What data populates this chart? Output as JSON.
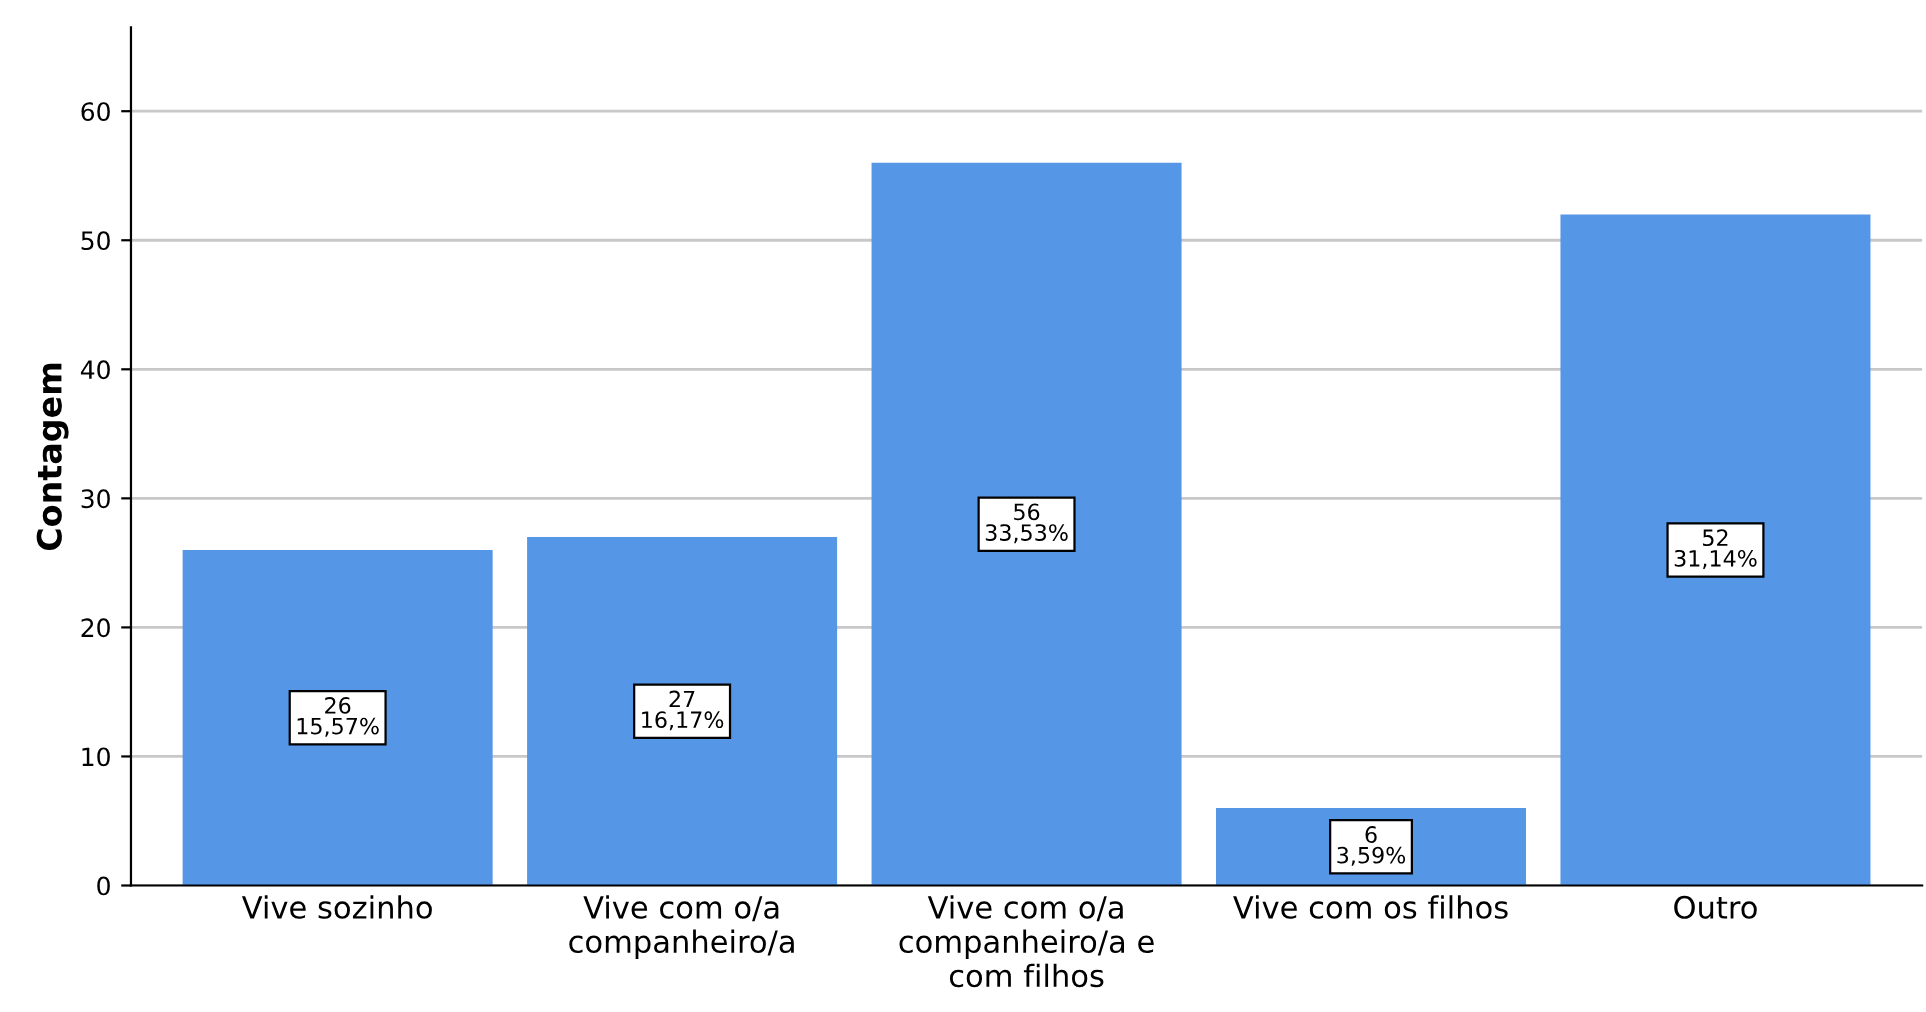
{
  "chart_data": {
    "type": "bar",
    "ylabel": "Contagem",
    "categories": [
      "Vive sozinho",
      "Vive com o/a\ncompanheiro/a",
      "Vive com o/a\ncompanheiro/a e\ncom filhos",
      "Vive com os filhos",
      "Outro"
    ],
    "values": [
      26,
      27,
      56,
      6,
      52
    ],
    "value_labels": [
      "26\n15,57%",
      "27\n16,17%",
      "56\n33,53%",
      "6\n3,59%",
      "52\n31,14%"
    ],
    "color": "#5596e6",
    "ylim": [
      0,
      66.5
    ],
    "yticks": [
      0,
      10,
      20,
      30,
      40,
      50,
      60
    ],
    "grid": "y"
  }
}
